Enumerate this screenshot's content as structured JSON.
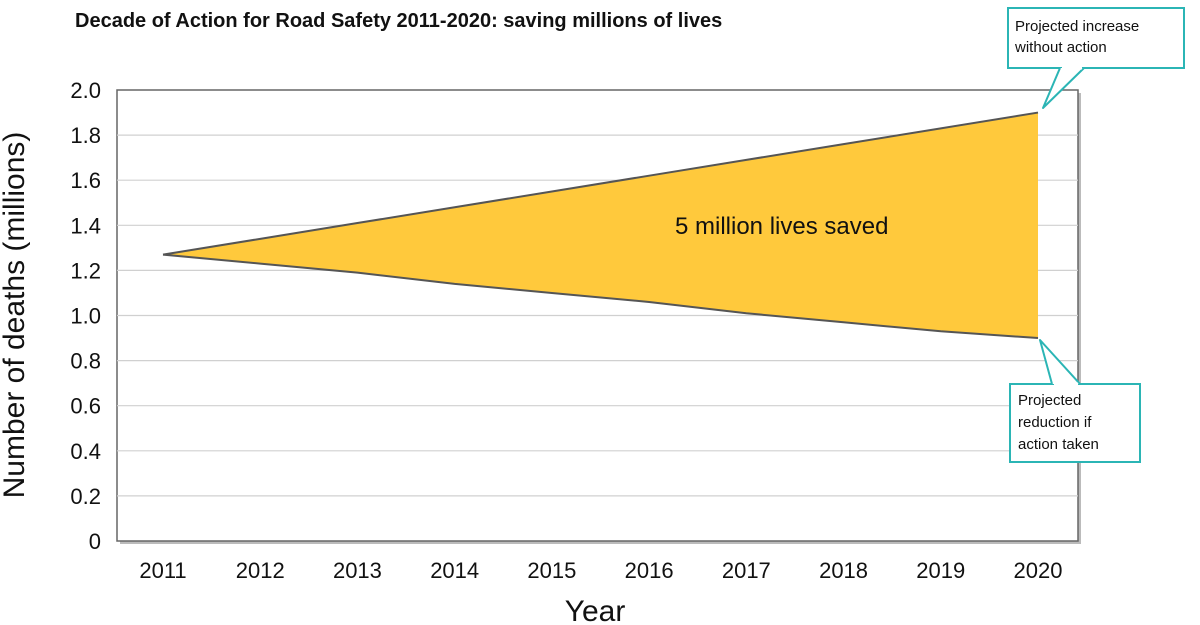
{
  "chart_data": {
    "type": "area",
    "title": "Decade of Action for Road Safety 2011-2020: saving millions of lives",
    "xlabel": "Year",
    "ylabel": "Number of deaths (millions)",
    "x": [
      "2011",
      "2012",
      "2013",
      "2014",
      "2015",
      "2016",
      "2017",
      "2018",
      "2019",
      "2020"
    ],
    "ylim": [
      0,
      2.0
    ],
    "y_ticks": [
      "0",
      "0.2",
      "0.4",
      "0.6",
      "0.8",
      "1.0",
      "1.2",
      "1.4",
      "1.6",
      "1.8",
      "2.0"
    ],
    "grid": true,
    "series": [
      {
        "values": [
          1.27,
          1.34,
          1.41,
          1.48,
          1.55,
          1.62,
          1.69,
          1.76,
          1.83,
          1.9
        ]
      },
      {
        "values": [
          1.27,
          1.23,
          1.19,
          1.14,
          1.1,
          1.06,
          1.01,
          0.97,
          0.93,
          0.9
        ]
      }
    ],
    "fill_color": "#FFC93C",
    "line_color": "#555555",
    "callout_border_color": "#2BB5B5",
    "annotations": {
      "center": "5 million lives saved",
      "upper_callout": [
        "Projected increase",
        "without action"
      ],
      "lower_callout": [
        "Projected",
        "reduction if",
        "action taken"
      ]
    }
  }
}
